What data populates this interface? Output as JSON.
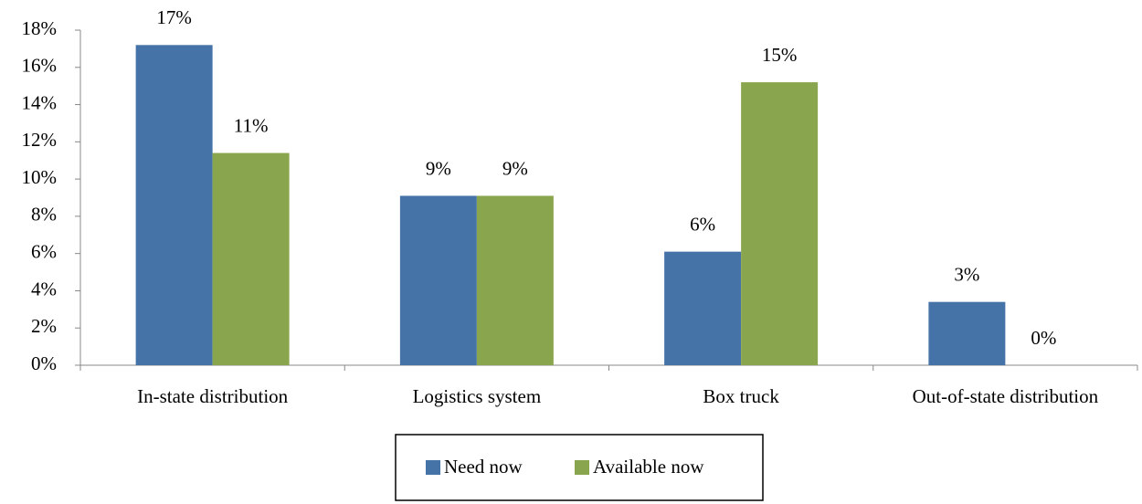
{
  "chart_data": {
    "type": "bar",
    "categories": [
      "In-state distribution",
      "Logistics system",
      "Box truck",
      "Out-of-state distribution"
    ],
    "series": [
      {
        "name": "Need now",
        "color": "#4573a7",
        "values": [
          17.2,
          9.1,
          6.1,
          3.4
        ],
        "value_labels": [
          "17%",
          "9%",
          "6%",
          "3%"
        ]
      },
      {
        "name": "Available now",
        "color": "#89a54e",
        "values": [
          11.4,
          9.1,
          15.2,
          0
        ],
        "value_labels": [
          "11%",
          "9%",
          "15%",
          "0%"
        ]
      }
    ],
    "ylim": [
      0,
      18
    ],
    "yticks": [
      {
        "value": 0,
        "label": "0%"
      },
      {
        "value": 2,
        "label": "2%"
      },
      {
        "value": 4,
        "label": "4%"
      },
      {
        "value": 6,
        "label": "6%"
      },
      {
        "value": 8,
        "label": "8%"
      },
      {
        "value": 10,
        "label": "10%"
      },
      {
        "value": 12,
        "label": "12%"
      },
      {
        "value": 14,
        "label": "14%"
      },
      {
        "value": 16,
        "label": "16%"
      },
      {
        "value": 18,
        "label": "18%"
      }
    ],
    "legend": "bottom",
    "grid": false
  }
}
